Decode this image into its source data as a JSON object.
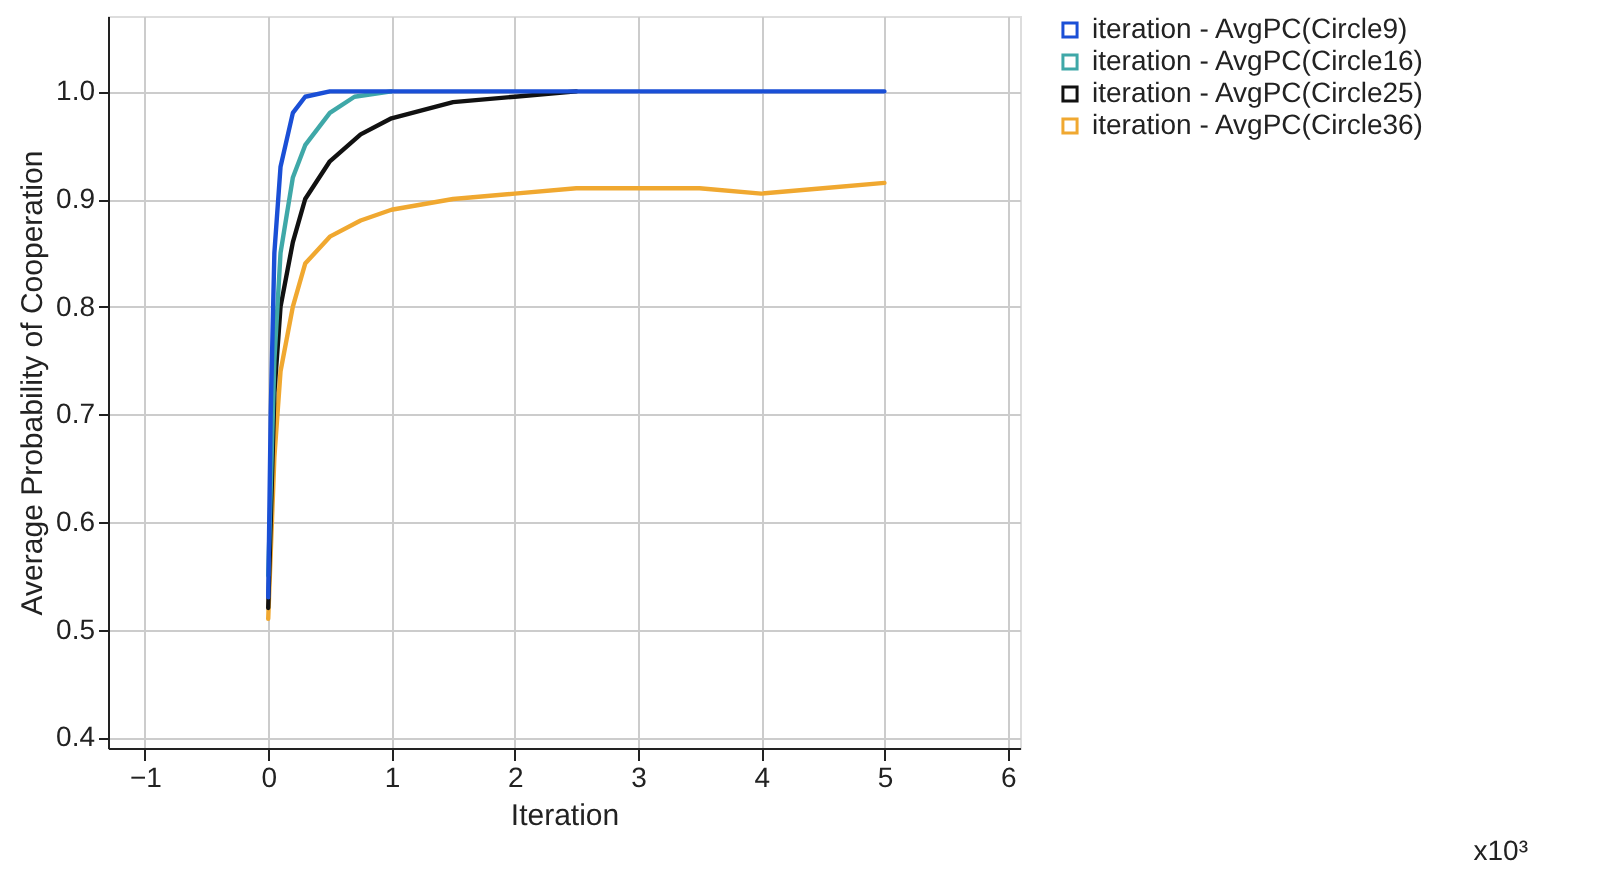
{
  "chart_data": {
    "type": "line",
    "xlabel": "Iteration",
    "ylabel": "Average Probability of Cooperation",
    "xlim": [
      -1.3,
      6.1
    ],
    "xticks": [
      -1,
      0,
      1,
      2,
      3,
      4,
      5,
      6
    ],
    "ylim": [
      0.39,
      1.07
    ],
    "yticks": [
      {
        "value": 0.4,
        "label": "0.4"
      },
      {
        "value": 0.5,
        "label": "0.5"
      },
      {
        "value": 0.6,
        "label": "0.6"
      },
      {
        "value": 0.7,
        "label": "0.7"
      },
      {
        "value": 0.8,
        "label": "0.8"
      },
      {
        "value": 0.9,
        "label": "0.9"
      },
      {
        "value": 1.0,
        "label": "1.0"
      }
    ],
    "grid": true,
    "legend": "right",
    "marker": "none",
    "line_style": "solid",
    "annotations": [
      "x10³"
    ],
    "series": [
      {
        "name": "iteration - AvgPC(Circle9)",
        "color": "#1a4fd6",
        "x": [
          0,
          0.02,
          0.05,
          0.1,
          0.2,
          0.3,
          0.5,
          1,
          2,
          3,
          4,
          5
        ],
        "values": [
          0.53,
          0.7,
          0.85,
          0.93,
          0.98,
          0.995,
          1.0,
          1.0,
          1.0,
          1.0,
          1.0,
          1.0
        ]
      },
      {
        "name": "iteration - AvgPC(Circle16)",
        "color": "#3fa8a8",
        "x": [
          0,
          0.05,
          0.1,
          0.2,
          0.3,
          0.5,
          0.7,
          1
        ],
        "values": [
          0.55,
          0.75,
          0.85,
          0.92,
          0.95,
          0.98,
          0.995,
          1.0
        ]
      },
      {
        "name": "iteration - AvgPC(Circle25)",
        "color": "#111111",
        "x": [
          0,
          0.05,
          0.1,
          0.2,
          0.3,
          0.5,
          0.75,
          1,
          1.5,
          2,
          2.5
        ],
        "values": [
          0.52,
          0.72,
          0.8,
          0.86,
          0.9,
          0.935,
          0.96,
          0.975,
          0.99,
          0.995,
          1.0
        ]
      },
      {
        "name": "iteration - AvgPC(Circle36)",
        "color": "#f0a830",
        "x": [
          0,
          0.05,
          0.1,
          0.2,
          0.3,
          0.5,
          0.75,
          1,
          1.5,
          2,
          2.5,
          3,
          3.5,
          4,
          4.5,
          5
        ],
        "values": [
          0.51,
          0.66,
          0.74,
          0.8,
          0.84,
          0.865,
          0.88,
          0.89,
          0.9,
          0.905,
          0.91,
          0.91,
          0.91,
          0.905,
          0.91,
          0.915
        ]
      }
    ]
  }
}
